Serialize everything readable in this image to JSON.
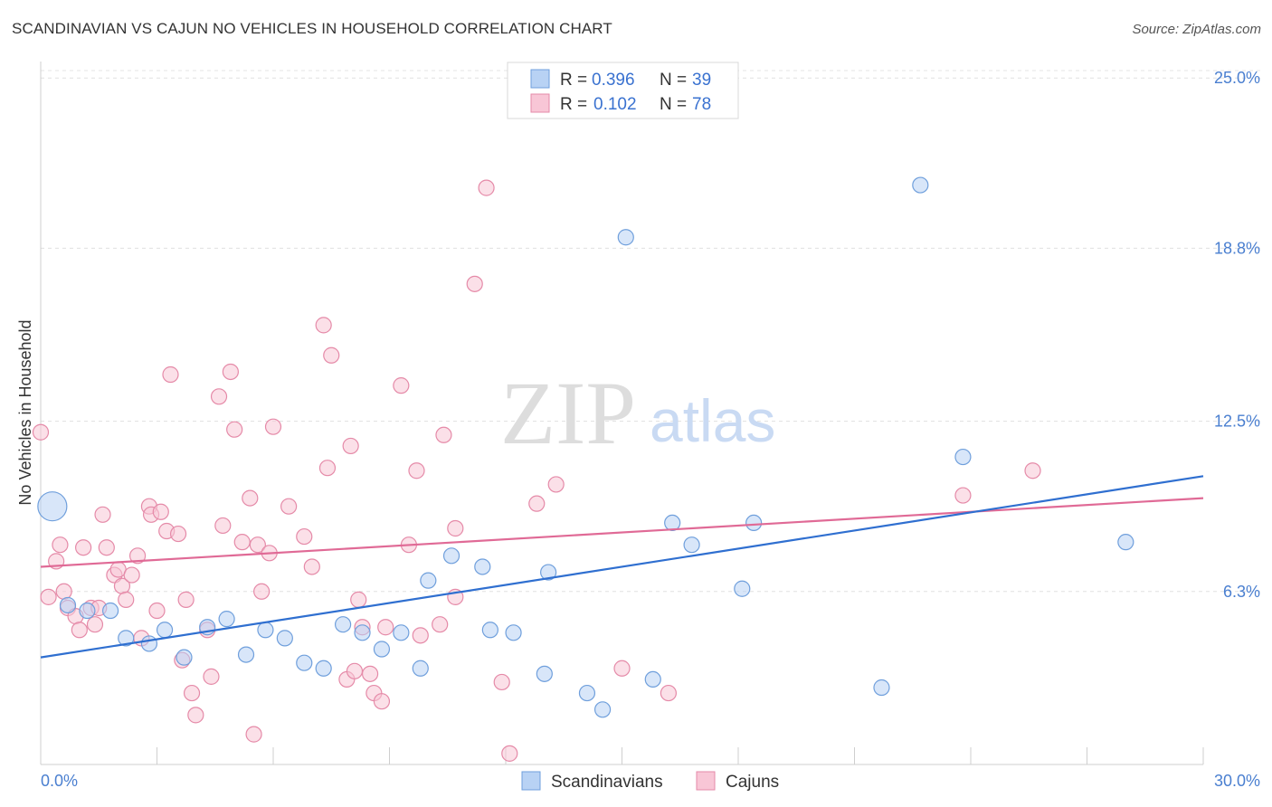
{
  "title": "SCANDINAVIAN VS CAJUN NO VEHICLES IN HOUSEHOLD CORRELATION CHART",
  "source": "Source: ZipAtlas.com",
  "watermark": {
    "zip": "ZIP",
    "atlas": "atlas"
  },
  "legend_top": {
    "rows": [
      {
        "r_label": "R = ",
        "r_value": "0.396",
        "n_label": "N = ",
        "n_value": "39"
      },
      {
        "r_label": "R = ",
        "r_value": "0.102",
        "n_label": "N = ",
        "n_value": "78"
      }
    ]
  },
  "legend_bottom": [
    "Scandinavians",
    "Cajuns"
  ],
  "colors": {
    "scandinavian_fill": "#b8d2f4",
    "scandinavian_stroke": "#6f9fdc",
    "scandinavian_line": "#2f6fd0",
    "cajun_fill": "#f8c6d6",
    "cajun_stroke": "#e58aa8",
    "cajun_line": "#e06a96",
    "grid": "#dddddd",
    "axis_label": "#4a7fd0"
  },
  "chart_data": {
    "type": "scatter",
    "title": "SCANDINAVIAN VS CAJUN NO VEHICLES IN HOUSEHOLD CORRELATION CHART",
    "xlabel": "",
    "ylabel": "No Vehicles in Household",
    "xlim": [
      0,
      30
    ],
    "ylim": [
      0,
      25.6
    ],
    "x_tick_labels": [
      "0.0%",
      "30.0%"
    ],
    "y_ticks": [
      6.3,
      12.5,
      18.8,
      25.0
    ],
    "y_tick_labels": [
      "6.3%",
      "12.5%",
      "18.8%",
      "25.0%"
    ],
    "grid": true,
    "legend_placement": "top-center and bottom",
    "series": [
      {
        "name": "Scandinavians",
        "r": 0.396,
        "n": 39,
        "trend": {
          "x": [
            0,
            30
          ],
          "y": [
            3.9,
            10.5
          ]
        },
        "points": [
          {
            "x": 0.3,
            "y": 9.4,
            "big": true
          },
          {
            "x": 0.7,
            "y": 5.8
          },
          {
            "x": 1.2,
            "y": 5.6
          },
          {
            "x": 1.8,
            "y": 5.6
          },
          {
            "x": 2.2,
            "y": 4.6
          },
          {
            "x": 2.8,
            "y": 4.4
          },
          {
            "x": 3.2,
            "y": 4.9
          },
          {
            "x": 3.7,
            "y": 3.9
          },
          {
            "x": 4.3,
            "y": 5.0
          },
          {
            "x": 4.8,
            "y": 5.3
          },
          {
            "x": 5.3,
            "y": 4.0
          },
          {
            "x": 5.8,
            "y": 4.9
          },
          {
            "x": 6.3,
            "y": 4.6
          },
          {
            "x": 6.8,
            "y": 3.7
          },
          {
            "x": 7.3,
            "y": 3.5
          },
          {
            "x": 7.8,
            "y": 5.1
          },
          {
            "x": 8.3,
            "y": 4.8
          },
          {
            "x": 8.8,
            "y": 4.2
          },
          {
            "x": 9.3,
            "y": 4.8
          },
          {
            "x": 9.8,
            "y": 3.5
          },
          {
            "x": 10.0,
            "y": 6.7
          },
          {
            "x": 10.6,
            "y": 7.6
          },
          {
            "x": 11.4,
            "y": 7.2
          },
          {
            "x": 11.6,
            "y": 4.9
          },
          {
            "x": 12.2,
            "y": 4.8
          },
          {
            "x": 13.0,
            "y": 3.3
          },
          {
            "x": 13.1,
            "y": 7.0
          },
          {
            "x": 14.1,
            "y": 2.6
          },
          {
            "x": 14.5,
            "y": 2.0
          },
          {
            "x": 15.1,
            "y": 19.2
          },
          {
            "x": 15.8,
            "y": 3.1
          },
          {
            "x": 16.3,
            "y": 8.8
          },
          {
            "x": 16.8,
            "y": 8.0
          },
          {
            "x": 18.1,
            "y": 6.4
          },
          {
            "x": 18.4,
            "y": 8.8
          },
          {
            "x": 21.7,
            "y": 2.8
          },
          {
            "x": 22.7,
            "y": 21.1
          },
          {
            "x": 23.8,
            "y": 11.2
          },
          {
            "x": 28.0,
            "y": 8.1
          }
        ]
      },
      {
        "name": "Cajuns",
        "r": 0.102,
        "n": 78,
        "trend": {
          "x": [
            0,
            30
          ],
          "y": [
            7.2,
            9.7
          ]
        },
        "points": [
          {
            "x": 0.0,
            "y": 12.1
          },
          {
            "x": 0.2,
            "y": 6.1
          },
          {
            "x": 0.4,
            "y": 7.4
          },
          {
            "x": 0.5,
            "y": 8.0
          },
          {
            "x": 0.6,
            "y": 6.3
          },
          {
            "x": 0.7,
            "y": 5.7
          },
          {
            "x": 0.9,
            "y": 5.4
          },
          {
            "x": 1.0,
            "y": 4.9
          },
          {
            "x": 1.1,
            "y": 7.9
          },
          {
            "x": 1.3,
            "y": 5.7
          },
          {
            "x": 1.4,
            "y": 5.1
          },
          {
            "x": 1.5,
            "y": 5.7
          },
          {
            "x": 1.6,
            "y": 9.1
          },
          {
            "x": 1.7,
            "y": 7.9
          },
          {
            "x": 1.9,
            "y": 6.9
          },
          {
            "x": 2.0,
            "y": 7.1
          },
          {
            "x": 2.1,
            "y": 6.5
          },
          {
            "x": 2.2,
            "y": 6.0
          },
          {
            "x": 2.35,
            "y": 6.9
          },
          {
            "x": 2.5,
            "y": 7.6
          },
          {
            "x": 2.6,
            "y": 4.6
          },
          {
            "x": 2.8,
            "y": 9.4
          },
          {
            "x": 2.85,
            "y": 9.1
          },
          {
            "x": 3.0,
            "y": 5.6
          },
          {
            "x": 3.1,
            "y": 9.2
          },
          {
            "x": 3.25,
            "y": 8.5
          },
          {
            "x": 3.35,
            "y": 14.2
          },
          {
            "x": 3.55,
            "y": 8.4
          },
          {
            "x": 3.65,
            "y": 3.8
          },
          {
            "x": 3.75,
            "y": 6.0
          },
          {
            "x": 3.9,
            "y": 2.6
          },
          {
            "x": 4.0,
            "y": 1.8
          },
          {
            "x": 4.3,
            "y": 4.9
          },
          {
            "x": 4.4,
            "y": 3.2
          },
          {
            "x": 4.6,
            "y": 13.4
          },
          {
            "x": 4.7,
            "y": 8.7
          },
          {
            "x": 4.9,
            "y": 14.3
          },
          {
            "x": 5.0,
            "y": 12.2
          },
          {
            "x": 5.2,
            "y": 8.1
          },
          {
            "x": 5.4,
            "y": 9.7
          },
          {
            "x": 5.5,
            "y": 1.1
          },
          {
            "x": 5.6,
            "y": 8.0
          },
          {
            "x": 5.7,
            "y": 6.3
          },
          {
            "x": 5.9,
            "y": 7.7
          },
          {
            "x": 6.0,
            "y": 12.3
          },
          {
            "x": 6.4,
            "y": 9.4
          },
          {
            "x": 6.8,
            "y": 8.3
          },
          {
            "x": 7.0,
            "y": 7.2
          },
          {
            "x": 7.3,
            "y": 16.0
          },
          {
            "x": 7.4,
            "y": 10.8
          },
          {
            "x": 7.5,
            "y": 14.9
          },
          {
            "x": 7.9,
            "y": 3.1
          },
          {
            "x": 8.0,
            "y": 11.6
          },
          {
            "x": 8.1,
            "y": 3.4
          },
          {
            "x": 8.2,
            "y": 6.0
          },
          {
            "x": 8.3,
            "y": 5.0
          },
          {
            "x": 8.5,
            "y": 3.3
          },
          {
            "x": 8.6,
            "y": 2.6
          },
          {
            "x": 8.8,
            "y": 2.3
          },
          {
            "x": 8.9,
            "y": 5.0
          },
          {
            "x": 9.3,
            "y": 13.8
          },
          {
            "x": 9.5,
            "y": 8.0
          },
          {
            "x": 9.7,
            "y": 10.7
          },
          {
            "x": 9.8,
            "y": 4.7
          },
          {
            "x": 10.3,
            "y": 5.1
          },
          {
            "x": 10.4,
            "y": 12.0
          },
          {
            "x": 10.7,
            "y": 6.1
          },
          {
            "x": 10.7,
            "y": 8.6
          },
          {
            "x": 11.2,
            "y": 17.5
          },
          {
            "x": 11.5,
            "y": 21.0
          },
          {
            "x": 11.9,
            "y": 3.0
          },
          {
            "x": 12.1,
            "y": 0.4
          },
          {
            "x": 12.8,
            "y": 9.5
          },
          {
            "x": 13.3,
            "y": 10.2
          },
          {
            "x": 15.0,
            "y": 3.5
          },
          {
            "x": 16.2,
            "y": 2.6
          },
          {
            "x": 23.8,
            "y": 9.8
          },
          {
            "x": 25.6,
            "y": 10.7
          }
        ]
      }
    ]
  }
}
